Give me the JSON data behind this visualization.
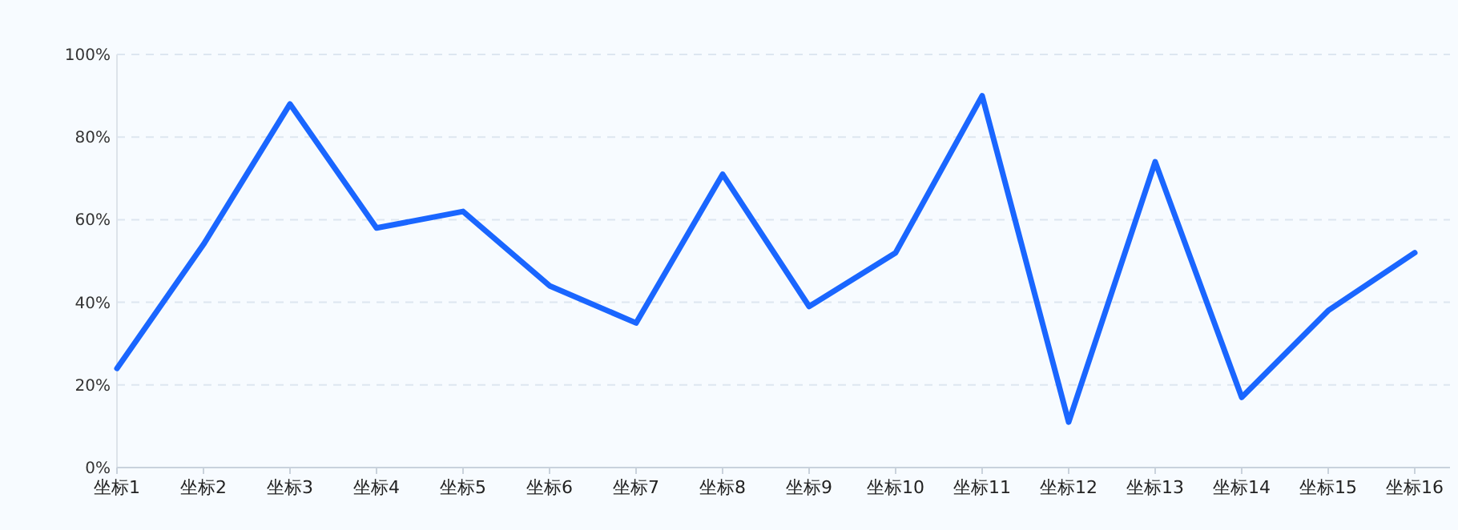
{
  "chart_data": {
    "type": "line",
    "categories": [
      "坐标1",
      "坐标2",
      "坐标3",
      "坐标4",
      "坐标5",
      "坐标6",
      "坐标7",
      "坐标8",
      "坐标9",
      "坐标10",
      "坐标11",
      "坐标12",
      "坐标13",
      "坐标14",
      "坐标15",
      "坐标16"
    ],
    "series": [
      {
        "color": "#1a66ff",
        "values": [
          24,
          54,
          88,
          58,
          62,
          44,
          35,
          71,
          39,
          52,
          90,
          11,
          74,
          17,
          38,
          52
        ]
      }
    ],
    "ylim": [
      0,
      100
    ],
    "yticks": [
      {
        "value": 0,
        "label": "0%"
      },
      {
        "value": 20,
        "label": "20%"
      },
      {
        "value": 40,
        "label": "40%"
      },
      {
        "value": 60,
        "label": "60%"
      },
      {
        "value": 80,
        "label": "80%"
      },
      {
        "value": 100,
        "label": "100%"
      }
    ],
    "grid": "y",
    "marker": "none",
    "line_style": "solid"
  }
}
